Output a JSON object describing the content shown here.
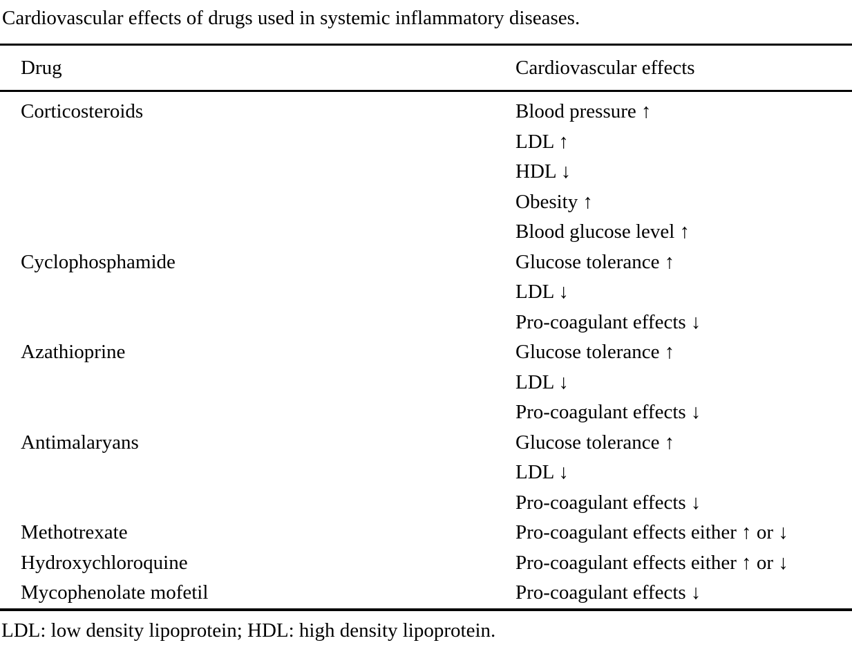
{
  "title": "Cardiovascular effects of drugs used in systemic inflammatory diseases.",
  "table": {
    "columns": [
      "Drug",
      "Cardiovascular effects"
    ],
    "rows": [
      {
        "drug": "Corticosteroids",
        "effects": [
          "Blood pressure ↑",
          "LDL ↑",
          "HDL ↓",
          "Obesity ↑",
          "Blood glucose level ↑"
        ]
      },
      {
        "drug": "Cyclophosphamide",
        "effects": [
          "Glucose tolerance ↑",
          "LDL ↓",
          "Pro-coagulant effects ↓"
        ]
      },
      {
        "drug": "Azathioprine",
        "effects": [
          "Glucose tolerance ↑",
          "LDL ↓",
          "Pro-coagulant effects ↓"
        ]
      },
      {
        "drug": "Antimalaryans",
        "effects": [
          "Glucose tolerance ↑",
          "LDL ↓",
          "Pro-coagulant effects ↓"
        ]
      },
      {
        "drug": "Methotrexate",
        "effects": [
          "Pro-coagulant effects either ↑ or ↓"
        ]
      },
      {
        "drug": "Hydroxychloroquine",
        "effects": [
          "Pro-coagulant effects either ↑ or ↓"
        ]
      },
      {
        "drug": "Mycophenolate mofetil",
        "effects": [
          "Pro-coagulant effects ↓"
        ]
      }
    ]
  },
  "footnote": "LDL: low density lipoprotein; HDL: high density lipoprotein.",
  "colors": {
    "text": "#000000",
    "background": "#ffffff",
    "rule": "#000000"
  }
}
